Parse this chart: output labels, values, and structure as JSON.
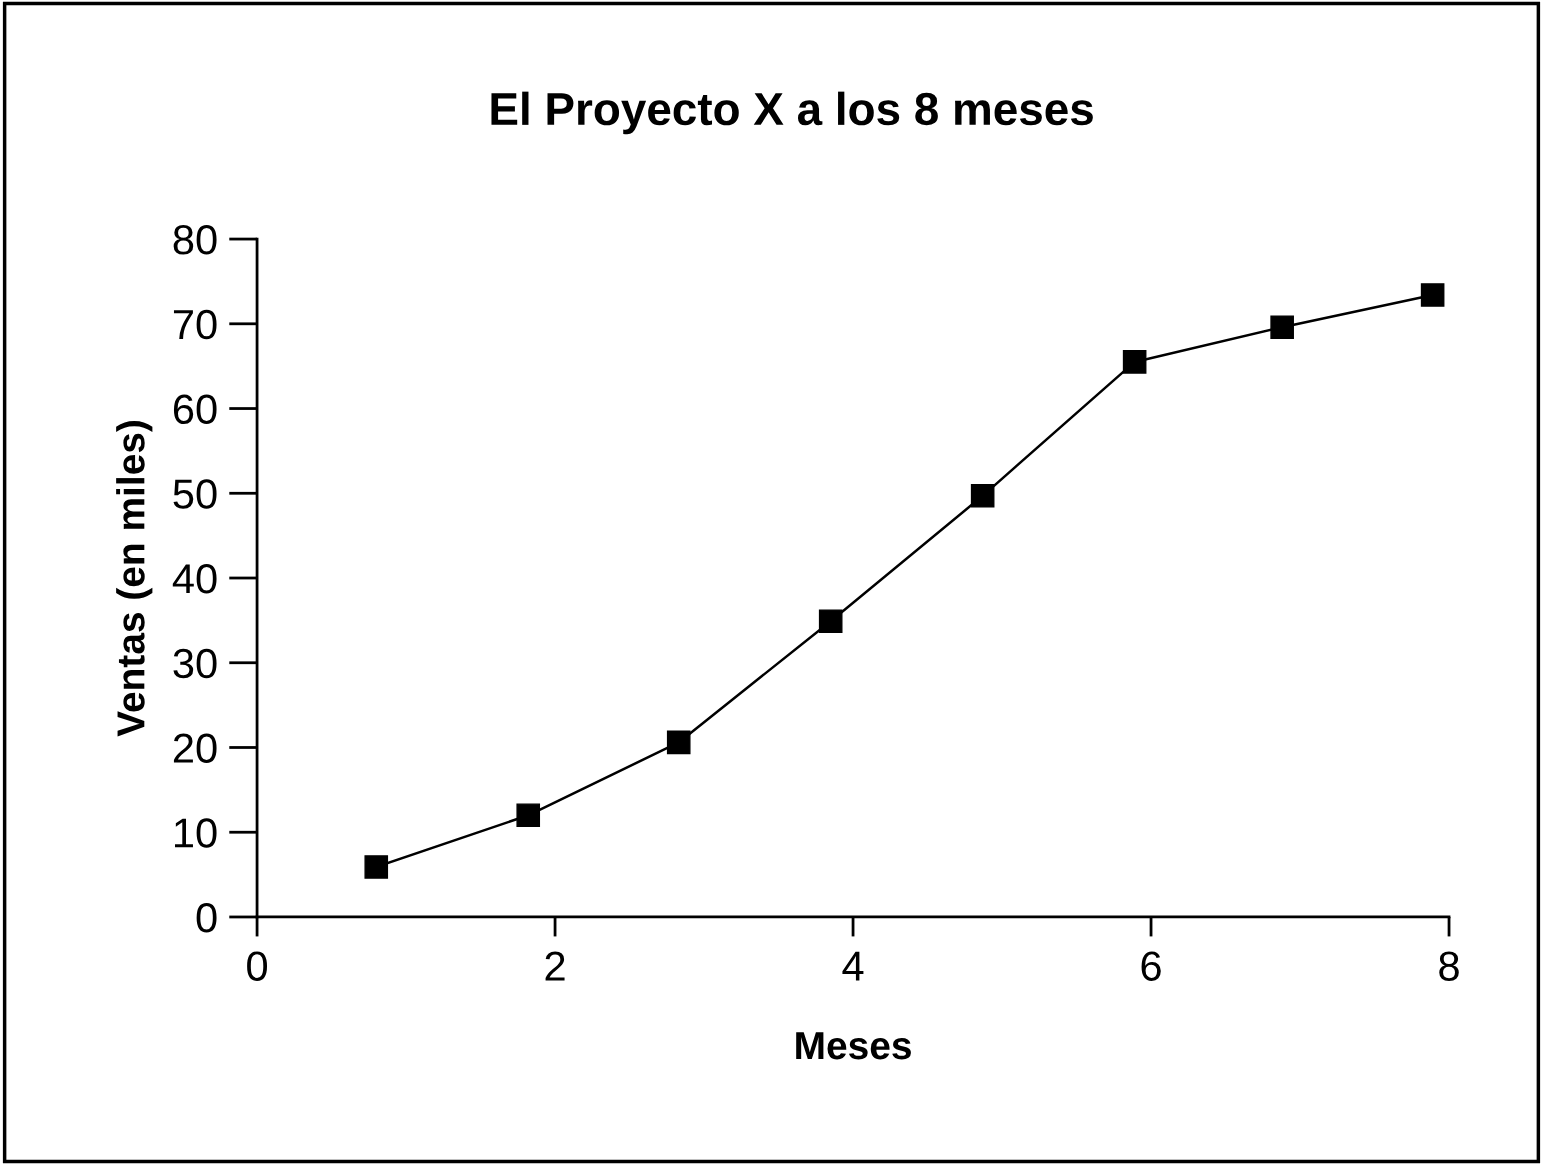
{
  "chart_data": {
    "type": "line",
    "title": "El Proyecto X a los 8 meses",
    "xlabel": "Meses",
    "ylabel": "Ventas (en miles)",
    "x": [
      0.8,
      1.82,
      2.83,
      3.85,
      4.87,
      5.89,
      6.88,
      7.89
    ],
    "series": [
      {
        "color": "#000000",
        "values": [
          5.9,
          12.0,
          20.6,
          34.9,
          49.7,
          65.5,
          69.6,
          73.4
        ]
      }
    ],
    "xlim": [
      0,
      8
    ],
    "xticks": [
      0,
      2,
      4,
      6,
      8
    ],
    "ylim": [
      0,
      80
    ],
    "yticks": [
      0,
      10,
      20,
      30,
      40,
      50,
      60,
      70,
      80
    ],
    "grid": false,
    "marker": "square",
    "line_style": "solid"
  }
}
